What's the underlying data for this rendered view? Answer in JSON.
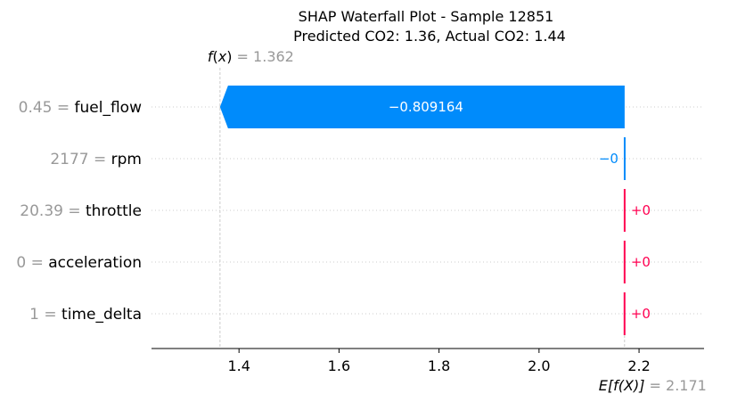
{
  "chart_data": {
    "type": "bar",
    "title": "SHAP Waterfall Plot - Sample 12851",
    "subtitle": "Predicted CO2: 1.36, Actual CO2: 1.44",
    "fx": {
      "symbol_f": "f",
      "symbol_x": "x",
      "eq": " = ",
      "value": 1.362,
      "value_text": "1.362"
    },
    "efx": {
      "symbol": "E[f(X)]",
      "eq": " = ",
      "value": 2.171,
      "value_text": "2.171"
    },
    "xlim": [
      1.225,
      2.33
    ],
    "ticks": [
      1.4,
      1.6,
      1.8,
      2.0,
      2.2
    ],
    "tick_labels": [
      "1.4",
      "1.6",
      "1.8",
      "2.0",
      "2.2"
    ],
    "features": [
      {
        "name": "fuel_flow",
        "value_text": "0.45",
        "eq": " = ",
        "shap": -0.809164,
        "label": "−0.809164"
      },
      {
        "name": "rpm",
        "value_text": "2177",
        "eq": " = ",
        "shap": -0.0001,
        "label": "−0"
      },
      {
        "name": "throttle",
        "value_text": "20.39",
        "eq": " = ",
        "shap": 0.0001,
        "label": "+0"
      },
      {
        "name": "acceleration",
        "value_text": "0",
        "eq": " = ",
        "shap": 0.0001,
        "label": "+0"
      },
      {
        "name": "time_delta",
        "value_text": "1",
        "eq": " = ",
        "shap": 0.0001,
        "label": "+0"
      }
    ],
    "colors": {
      "negative": "#008bfb",
      "positive": "#ff0051",
      "muted": "#999999",
      "grid": "#cccccc"
    }
  }
}
